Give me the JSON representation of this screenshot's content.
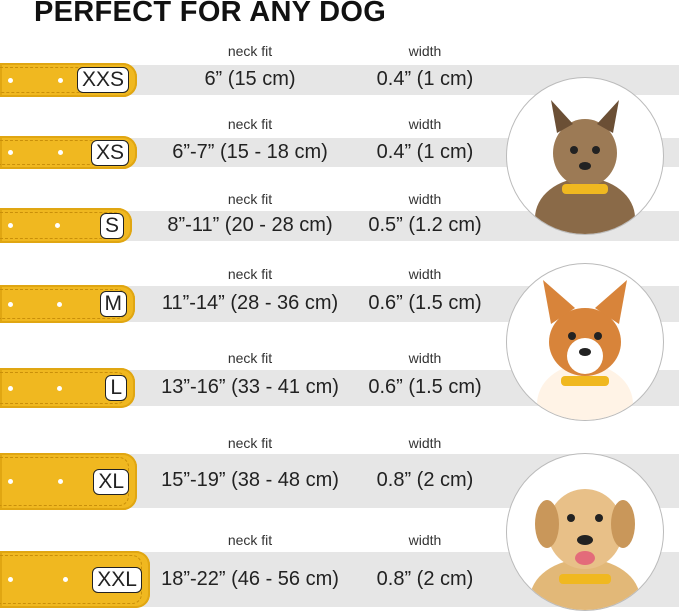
{
  "title": "PERFECT FOR ANY DOG",
  "column_labels": {
    "neck_fit": "neck fit",
    "width": "width"
  },
  "sizes": [
    {
      "size": "XXS",
      "neck_fit": "6” (15 cm)",
      "width": "0.4” (1 cm)"
    },
    {
      "size": "XS",
      "neck_fit": "6”-7” (15 - 18 cm)",
      "width": "0.4” (1 cm)"
    },
    {
      "size": "S",
      "neck_fit": "8”-11” (20 - 28 cm)",
      "width": "0.5” (1.2 cm)"
    },
    {
      "size": "M",
      "neck_fit": "11”-14” (28 - 36 cm)",
      "width": "0.6” (1.5 cm)"
    },
    {
      "size": "L",
      "neck_fit": "13”-16” (33 - 41 cm)",
      "width": "0.6” (1.5 cm)"
    },
    {
      "size": "XL",
      "neck_fit": "15”-19” (38 - 48 cm)",
      "width": "0.8” (2 cm)"
    },
    {
      "size": "XXL",
      "neck_fit": "18”-22” (46 - 56 cm)",
      "width": "0.8” (2 cm)"
    }
  ],
  "colors": {
    "collar": "#f0b820",
    "band": "#e6e6e6"
  },
  "images": [
    "small-terrier-dog",
    "corgi-dog",
    "labrador-dog"
  ]
}
